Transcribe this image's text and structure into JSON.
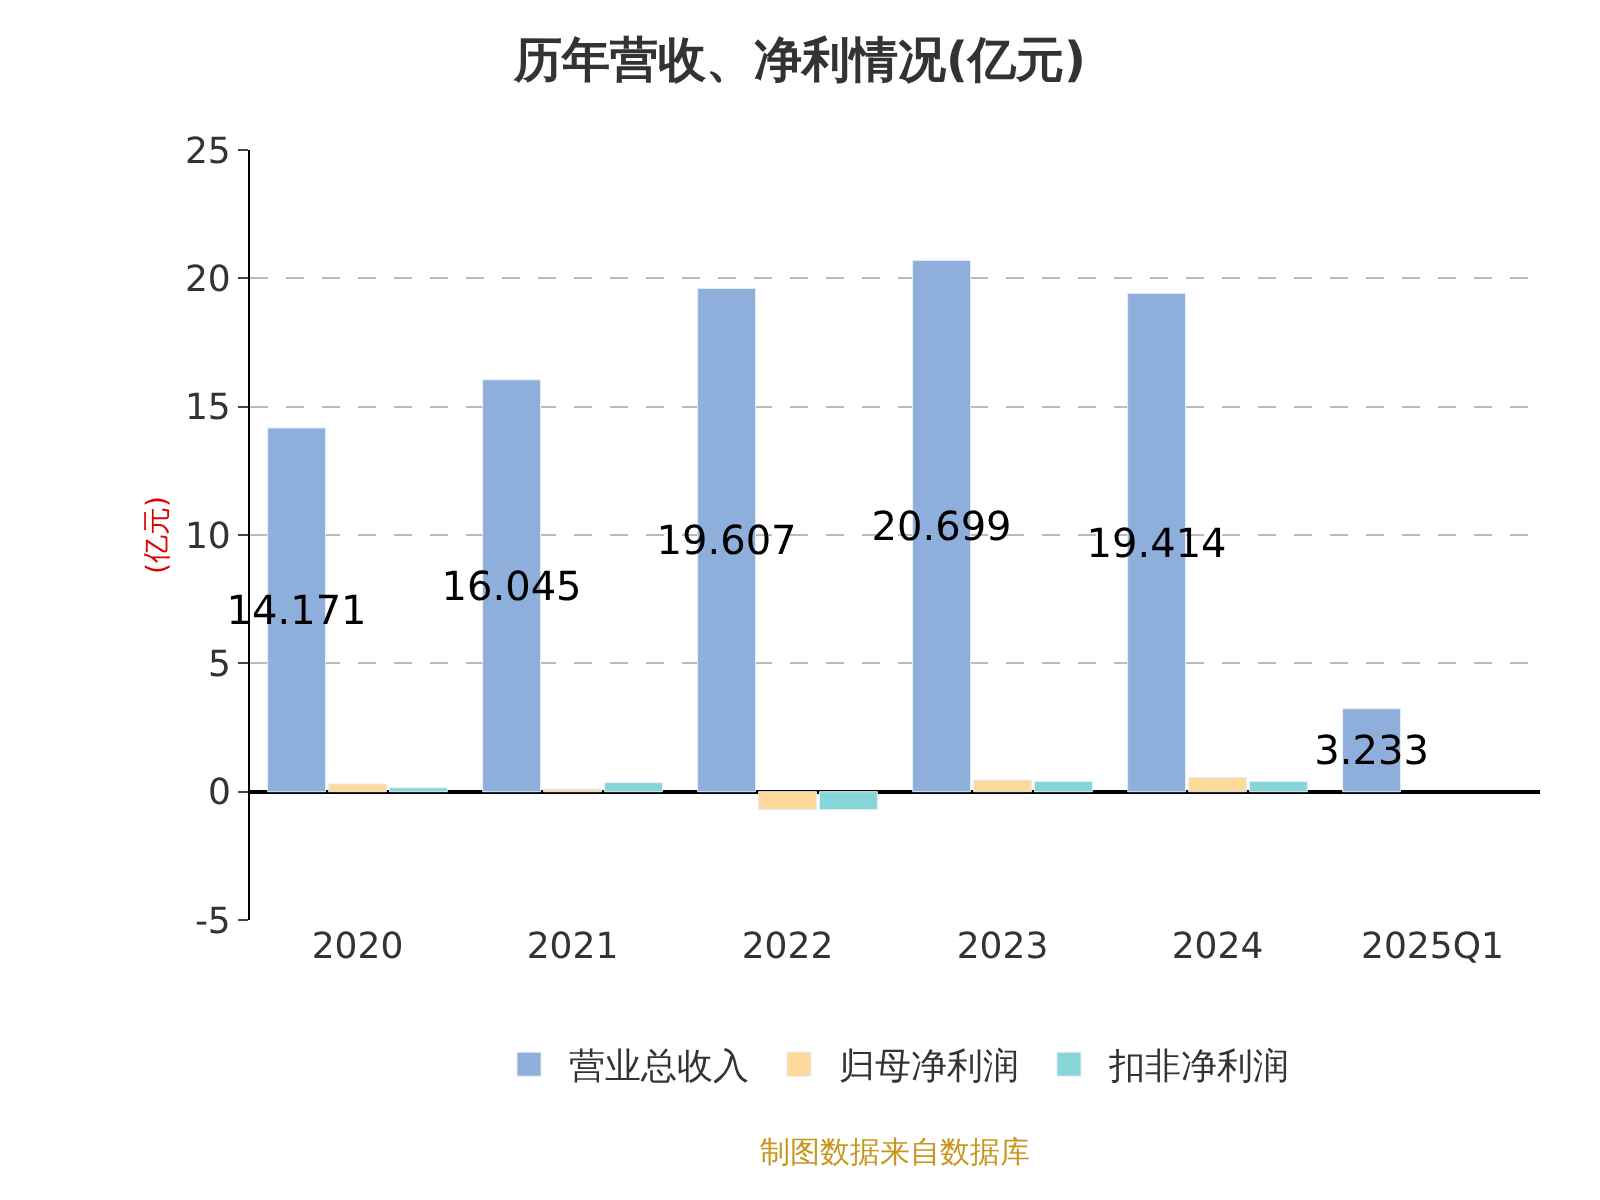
{
  "chart_data": {
    "type": "bar",
    "title": "历年营收、净利情况(亿元)",
    "ylabel": "(亿元)",
    "categories": [
      "2020",
      "2021",
      "2022",
      "2023",
      "2024",
      "2025Q1"
    ],
    "series": [
      {
        "name": "营业总收入",
        "color": "#8eaedb",
        "values": [
          14.171,
          16.045,
          19.607,
          20.699,
          19.414,
          3.233
        ],
        "value_labels": [
          "14.171",
          "16.045",
          "19.607",
          "20.699",
          "19.414",
          "3.233"
        ]
      },
      {
        "name": "归母净利润",
        "color": "#fdd99a",
        "values": [
          0.3,
          0.1,
          -0.7,
          0.45,
          0.55,
          null
        ]
      },
      {
        "name": "扣非净利润",
        "color": "#86d5d8",
        "values": [
          0.15,
          0.35,
          -0.7,
          0.4,
          0.4,
          null
        ]
      }
    ],
    "ylim": [
      -5,
      25
    ],
    "yticks": [
      -5,
      0,
      5,
      10,
      15,
      20,
      25
    ],
    "grid": "y",
    "legend": "bottom",
    "annotations": [
      "制图数据来自数据库"
    ]
  }
}
